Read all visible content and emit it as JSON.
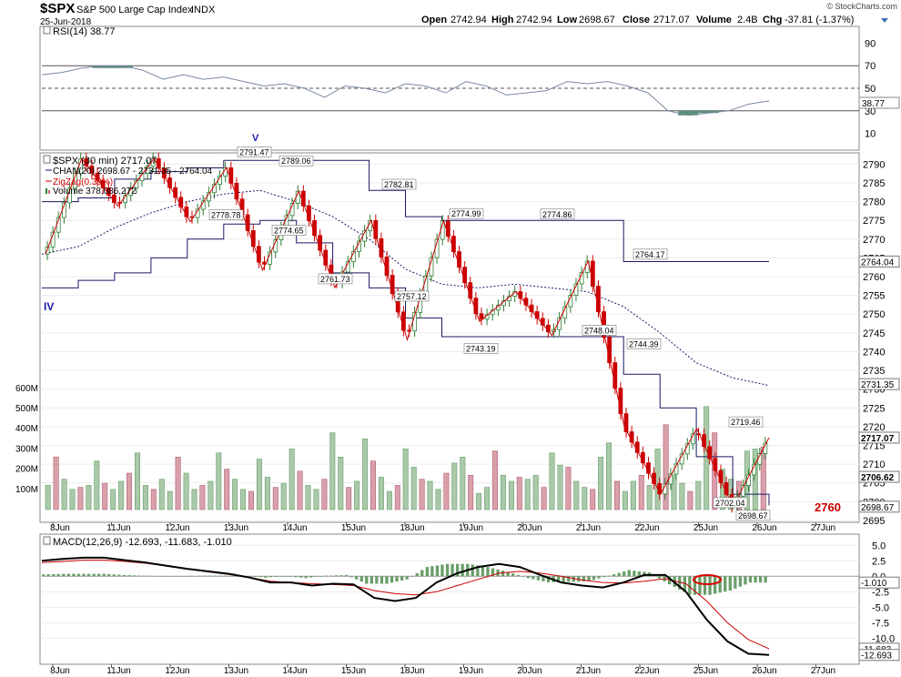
{
  "header": {
    "symbol": "$SPX",
    "name": "S&P 500 Large Cap Index",
    "exchange": "INDX",
    "date": "25-Jun-2018",
    "brand": "© StockCharts.com",
    "quote": {
      "open_label": "Open",
      "open": "2742.94",
      "high_label": "High",
      "high": "2742.94",
      "low_label": "Low",
      "low": "2698.67",
      "close_label": "Close",
      "close": "2717.07",
      "volume_label": "Volume",
      "volume": "2.4B",
      "chg_label": "Chg",
      "chg": "-37.81 (-1.37%)"
    }
  },
  "rsi_panel": {
    "legend": "RSI(14) 38.77",
    "current": "38.77",
    "levels": [
      "90",
      "70",
      "50",
      "30",
      "10"
    ],
    "overbought": 70,
    "oversold": 30,
    "marker": "V"
  },
  "price_panel": {
    "legend_title": "$SPX (30 min) 2717.07",
    "legend_chan": "CHAN(20) 2698.67 - 2731.35 - 2764.04",
    "legend_zigzag": "ZigZag(0.38%)",
    "legend_volume": "Volume 378,086,272",
    "marker": "IV",
    "y_ticks": [
      "2790",
      "2785",
      "2780",
      "2775",
      "2770",
      "2765",
      "2760",
      "2755",
      "2750",
      "2745",
      "2740",
      "2735",
      "2730",
      "2725",
      "2720",
      "2715",
      "2710",
      "2705",
      "2700",
      "2695"
    ],
    "volume_ticks": [
      "600M",
      "500M",
      "400M",
      "300M",
      "200M",
      "100M"
    ],
    "tags": [
      {
        "label": "2764.04",
        "value": 2764.04,
        "color": "#1a1a66"
      },
      {
        "label": "2731.35",
        "value": 2731.35,
        "color": "#1a1a66"
      },
      {
        "label": "2717.07",
        "value": 2717.07,
        "color": "#000000"
      },
      {
        "label": "2706.62",
        "value": 2706.62,
        "color": "#000000"
      },
      {
        "label": "2698.67",
        "value": 2698.67,
        "color": "#1a1a66"
      }
    ],
    "annotation": "2760"
  },
  "macd_panel": {
    "legend": "MACD(12,26,9) -12.693, -11.683, -1.010",
    "y_ticks": [
      "5.0",
      "2.5",
      "0.0",
      "-2.5",
      "-5.0",
      "-7.5",
      "-10.0"
    ],
    "tags": [
      {
        "label": "-1.010",
        "value": -1.01
      },
      {
        "label": "-11.683",
        "value": -11.683
      },
      {
        "label": "-12.693",
        "value": -12.693
      }
    ]
  },
  "x_axis": {
    "labels": [
      "8Jun",
      "11Jun",
      "12Jun",
      "13Jun",
      "14Jun",
      "15Jun",
      "18Jun",
      "19Jun",
      "20Jun",
      "21Jun",
      "22Jun",
      "25Jun",
      "26Jun",
      "27Jun"
    ]
  },
  "colors": {
    "up": "#2e7d32",
    "down": "#cc0000",
    "channel": "#1a1a66",
    "zigzag": "#cc0000",
    "macd": "#000000",
    "signal": "#cc0000",
    "histogram": "#6a9e6a",
    "rsi_line": "#7a8aa0",
    "rsi_fill": "#5a8f7a",
    "annotation": "#cc0000"
  },
  "chart_data": {
    "type": "line",
    "title": "$SPX S&P 500 Large Cap Index INDX",
    "x_categories": [
      "8Jun",
      "11Jun",
      "12Jun",
      "13Jun",
      "14Jun",
      "15Jun",
      "18Jun",
      "19Jun",
      "20Jun",
      "21Jun",
      "22Jun",
      "25Jun",
      "26Jun",
      "27Jun"
    ],
    "price_ylim": [
      2695,
      2793
    ],
    "zigzag_points": [
      {
        "label": "2791.47",
        "value": 2791.47,
        "index": 60
      },
      {
        "label": "2778.78",
        "value": 2778.78,
        "index": 52
      },
      {
        "label": "2789.06",
        "value": 2789.06,
        "index": 74
      },
      {
        "label": "2774.65",
        "value": 2774.65,
        "index": 70
      },
      {
        "label": "2761.73",
        "value": 2761.73,
        "index": 89
      },
      {
        "label": "2782.81",
        "value": 2782.81,
        "index": 100
      },
      {
        "label": "2757.12",
        "value": 2757.12,
        "index": 105
      },
      {
        "label": "2774.99",
        "value": 2774.99,
        "index": 120
      },
      {
        "label": "2743.19",
        "value": 2743.19,
        "index": 122
      },
      {
        "label": "2774.86",
        "value": 2774.86,
        "index": 142
      },
      {
        "label": "2748.04",
        "value": 2748.04,
        "index": 152
      },
      {
        "label": "2764.17",
        "value": 2764.17,
        "index": 166
      },
      {
        "label": "2744.39",
        "value": 2744.39,
        "index": 163
      },
      {
        "label": "2719.46",
        "value": 2719.46,
        "index": 190
      },
      {
        "label": "2702.04",
        "value": 2702.04,
        "index": 185
      },
      {
        "label": "2698.67",
        "value": 2698.67,
        "index": 193
      }
    ],
    "zigzag_series": [
      2766,
      2791.47,
      2778.78,
      2791.47,
      2774.65,
      2789.06,
      2761.73,
      2782.81,
      2757.12,
      2774.99,
      2743.19,
      2774.86,
      2748.04,
      2756,
      2744.39,
      2764.17,
      2720,
      2702.04,
      2719.46,
      2698.67,
      2717.07
    ],
    "channel_upper": [
      2780,
      2781,
      2786,
      2788,
      2789,
      2791,
      2791,
      2791,
      2791,
      2783,
      2776,
      2775,
      2775,
      2775,
      2775,
      2775,
      2764,
      2764,
      2764,
      2764,
      2764
    ],
    "channel_mid": [
      2766,
      2768,
      2773,
      2777,
      2780,
      2782,
      2783,
      2780,
      2776,
      2770,
      2762,
      2758,
      2757,
      2758,
      2757,
      2756,
      2752,
      2745,
      2737,
      2733,
      2731
    ],
    "channel_lower": [
      2757,
      2759,
      2761,
      2765,
      2770,
      2774,
      2775,
      2769,
      2761,
      2757,
      2749,
      2744,
      2744,
      2744,
      2744,
      2744,
      2734,
      2725,
      2712,
      2702,
      2699
    ],
    "rsi_values": [
      62,
      64,
      68,
      70,
      70,
      66,
      58,
      62,
      58,
      60,
      56,
      52,
      54,
      50,
      42,
      52,
      50,
      46,
      54,
      52,
      46,
      56,
      52,
      44,
      46,
      48,
      56,
      54,
      56,
      52,
      46,
      30,
      26,
      28,
      30,
      36,
      38.77
    ],
    "macd_values": [
      2.5,
      2.8,
      3.0,
      3.0,
      2.6,
      2.2,
      1.7,
      1.2,
      0.8,
      0.4,
      -0.2,
      -1.0,
      -1.0,
      -1.5,
      -1.2,
      -1.3,
      -3.5,
      -4.0,
      -3.5,
      -1.0,
      0.5,
      1.5,
      2.0,
      1.5,
      0.2,
      -1.0,
      -1.5,
      -1.8,
      -1.0,
      0.2,
      0.2,
      -2.5,
      -7.0,
      -10.5,
      -12.5,
      -12.693
    ],
    "signal_values": [
      2.2,
      2.4,
      2.6,
      2.6,
      2.4,
      2.1,
      1.7,
      1.2,
      0.7,
      0.3,
      -0.2,
      -0.8,
      -1.0,
      -1.2,
      -1.3,
      -1.5,
      -2.3,
      -2.8,
      -3.0,
      -2.5,
      -1.5,
      -0.5,
      0.5,
      0.8,
      0.5,
      0.0,
      -0.6,
      -1.0,
      -1.1,
      -0.8,
      -0.4,
      -1.2,
      -4.0,
      -7.5,
      -10.2,
      -11.683
    ],
    "histogram_values": [
      0.3,
      0.4,
      0.4,
      0.4,
      0.2,
      0.1,
      0.0,
      0.0,
      0.1,
      0.1,
      0.0,
      -0.2,
      0.0,
      -0.3,
      0.1,
      0.2,
      -1.2,
      -1.2,
      -0.5,
      1.5,
      2.0,
      2.0,
      1.5,
      0.7,
      -0.3,
      -1.0,
      -0.9,
      -0.8,
      0.1,
      1.0,
      0.6,
      -1.3,
      -3.0,
      -3.0,
      -2.3,
      -1.01
    ],
    "volume_values_m": [
      120,
      260,
      150,
      100,
      110,
      120,
      240,
      130,
      100,
      140,
      180,
      280,
      120,
      100,
      150,
      90,
      260,
      180,
      100,
      120,
      140,
      280,
      200,
      150,
      100,
      90,
      250,
      160,
      110,
      130,
      300,
      190,
      120,
      100,
      150,
      380,
      260,
      110,
      140,
      350,
      240,
      160,
      90,
      120,
      300,
      210,
      150,
      140,
      100,
      180,
      230,
      260,
      170,
      80,
      110,
      290,
      170,
      140,
      160,
      150,
      170,
      110,
      280,
      220,
      210,
      140,
      110,
      100,
      260,
      330,
      140,
      90,
      140,
      170,
      120,
      300,
      420,
      170,
      130,
      90,
      140,
      510,
      380,
      200,
      150,
      140,
      290,
      300,
      310
    ],
    "rsi_ylim": [
      0,
      100
    ],
    "macd_ylim": [
      -13,
      6
    ]
  }
}
